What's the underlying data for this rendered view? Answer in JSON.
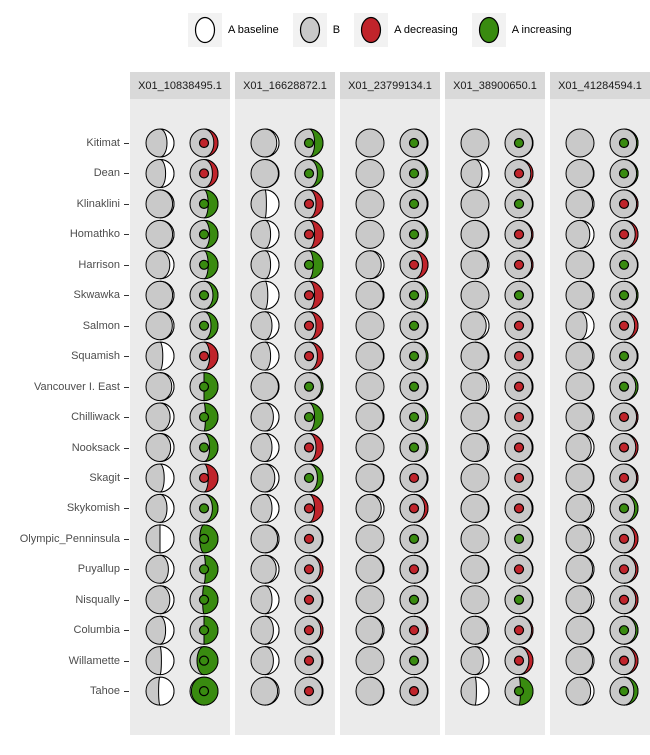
{
  "chart_data": {
    "type": "moon-glyph-matrix",
    "description": "Faceted moon-phase glyph chart. Each cell shows two circles: left moon = 'A baseline' (white) vs 'B' (gray) proportion; right moon = current A proportion, colored red if A decreasing or green if A increasing, with a center dot of the same direction color.",
    "legend": [
      {
        "label": "A baseline",
        "swatch": "white"
      },
      {
        "label": "B",
        "swatch": "gray"
      },
      {
        "label": "A decreasing",
        "swatch": "red"
      },
      {
        "label": "A increasing",
        "swatch": "green"
      }
    ],
    "panels": [
      "X01_10838495.1",
      "X01_16628872.1",
      "X01_23799134.1",
      "X01_38900650.1",
      "X01_41284594.1"
    ],
    "rows": [
      "Kitimat",
      "Dean",
      "Klinaklini",
      "Homathko",
      "Harrison",
      "Skwawka",
      "Salmon",
      "Squamish",
      "Vancouver I. East",
      "Chilliwack",
      "Nooksack",
      "Skagit",
      "Skykomish",
      "Olympic_Penninsula",
      "Puyallup",
      "Nisqually",
      "Columbia",
      "Willamette",
      "Tahoe"
    ],
    "cells_format": "[baseline_A_fraction, changed_A_fraction, direction]",
    "cells": [
      [
        [
          0.25,
          0.15,
          "dec"
        ],
        [
          0.3,
          0.2,
          "dec"
        ],
        [
          0.05,
          0.35,
          "inc"
        ],
        [
          0.05,
          0.3,
          "inc"
        ],
        [
          0.15,
          0.35,
          "inc"
        ],
        [
          0.05,
          0.18,
          "inc"
        ],
        [
          0.06,
          0.25,
          "inc"
        ],
        [
          0.4,
          0.3,
          "dec"
        ],
        [
          0.08,
          0.5,
          "inc"
        ],
        [
          0.14,
          0.45,
          "inc"
        ],
        [
          0.12,
          0.3,
          "inc"
        ],
        [
          0.35,
          0.35,
          "dec"
        ],
        [
          0.25,
          0.2,
          "inc"
        ],
        [
          0.5,
          0.65,
          "inc"
        ],
        [
          0.2,
          0.45,
          "inc"
        ],
        [
          0.15,
          0.55,
          "inc"
        ],
        [
          0.3,
          0.5,
          "inc"
        ],
        [
          0.45,
          0.75,
          "inc"
        ],
        [
          0.55,
          0.95,
          "inc"
        ]
      ],
      [
        [
          0.08,
          0.3,
          "inc"
        ],
        [
          0.02,
          0.2,
          "inc"
        ],
        [
          0.45,
          0.25,
          "dec"
        ],
        [
          0.3,
          0.3,
          "dec"
        ],
        [
          0.3,
          0.35,
          "inc"
        ],
        [
          0.4,
          0.3,
          "dec"
        ],
        [
          0.25,
          0.25,
          "dec"
        ],
        [
          0.3,
          0.2,
          "dec"
        ],
        [
          0.02,
          0.06,
          "inc"
        ],
        [
          0.2,
          0.3,
          "inc"
        ],
        [
          0.25,
          0.25,
          "dec"
        ],
        [
          0.15,
          0.2,
          "inc"
        ],
        [
          0.25,
          0.3,
          "dec"
        ],
        [
          0.05,
          0.03,
          "dec"
        ],
        [
          0.1,
          0.1,
          "dec"
        ],
        [
          0.25,
          0.03,
          "dec"
        ],
        [
          0.2,
          0.08,
          "dec"
        ],
        [
          0.2,
          0.04,
          "dec"
        ],
        [
          0.05,
          0.03,
          "dec"
        ]
      ],
      [
        [
          0.0,
          0.03,
          "inc"
        ],
        [
          0.0,
          0.06,
          "inc"
        ],
        [
          0.0,
          0.03,
          "inc"
        ],
        [
          0.0,
          0.06,
          "inc"
        ],
        [
          0.1,
          0.2,
          "dec"
        ],
        [
          0.03,
          0.08,
          "inc"
        ],
        [
          0.0,
          0.03,
          "inc"
        ],
        [
          0.02,
          0.06,
          "inc"
        ],
        [
          0.0,
          0.03,
          "inc"
        ],
        [
          0.03,
          0.08,
          "inc"
        ],
        [
          0.0,
          0.06,
          "inc"
        ],
        [
          0.02,
          0.03,
          "dec"
        ],
        [
          0.1,
          0.12,
          "dec"
        ],
        [
          0.0,
          0.02,
          "inc"
        ],
        [
          0.03,
          0.03,
          "dec"
        ],
        [
          0.0,
          0.02,
          "inc"
        ],
        [
          0.05,
          0.05,
          "dec"
        ],
        [
          0.0,
          0.02,
          "inc"
        ],
        [
          0.02,
          0.02,
          "dec"
        ]
      ],
      [
        [
          0.0,
          0.02,
          "inc"
        ],
        [
          0.25,
          0.08,
          "dec"
        ],
        [
          0.0,
          0.02,
          "inc"
        ],
        [
          0.02,
          0.05,
          "dec"
        ],
        [
          0.05,
          0.05,
          "dec"
        ],
        [
          0.0,
          0.02,
          "inc"
        ],
        [
          0.1,
          0.03,
          "dec"
        ],
        [
          0.03,
          0.03,
          "dec"
        ],
        [
          0.08,
          0.03,
          "dec"
        ],
        [
          0.02,
          0.03,
          "dec"
        ],
        [
          0.05,
          0.03,
          "dec"
        ],
        [
          0.0,
          0.02,
          "dec"
        ],
        [
          0.02,
          0.03,
          "dec"
        ],
        [
          0.0,
          0.02,
          "inc"
        ],
        [
          0.02,
          0.02,
          "dec"
        ],
        [
          0.0,
          0.02,
          "inc"
        ],
        [
          0.05,
          0.05,
          "dec"
        ],
        [
          0.2,
          0.15,
          "dec"
        ],
        [
          0.45,
          0.45,
          "inc"
        ]
      ],
      [
        [
          0.0,
          0.05,
          "inc"
        ],
        [
          0.02,
          0.05,
          "inc"
        ],
        [
          0.05,
          0.05,
          "dec"
        ],
        [
          0.15,
          0.1,
          "dec"
        ],
        [
          0.02,
          0.02,
          "inc"
        ],
        [
          0.05,
          0.05,
          "inc"
        ],
        [
          0.25,
          0.12,
          "dec"
        ],
        [
          0.05,
          0.03,
          "inc"
        ],
        [
          0.02,
          0.08,
          "inc"
        ],
        [
          0.05,
          0.05,
          "dec"
        ],
        [
          0.1,
          0.08,
          "dec"
        ],
        [
          0.02,
          0.05,
          "dec"
        ],
        [
          0.08,
          0.12,
          "inc"
        ],
        [
          0.1,
          0.12,
          "dec"
        ],
        [
          0.05,
          0.08,
          "dec"
        ],
        [
          0.08,
          0.08,
          "dec"
        ],
        [
          0.02,
          0.08,
          "inc"
        ],
        [
          0.05,
          0.1,
          "dec"
        ],
        [
          0.12,
          0.15,
          "inc"
        ]
      ]
    ],
    "layout_hints": {
      "legend_position": "top",
      "grid": false,
      "facets": 5,
      "facet_rows": 19
    }
  },
  "colors": {
    "baseline_white": "#ffffff",
    "b_gray": "#c9c9c9",
    "decreasing_red": "#c0242b",
    "increasing_green": "#398b10",
    "outline": "#000000",
    "panel_bg": "#ebebeb",
    "strip_bg": "#d9d9d9",
    "axis_text": "#4d4d4d",
    "strip_text": "#1a1a1a",
    "legend_key_bg": "#f2f2f2",
    "tick": "#333333"
  }
}
